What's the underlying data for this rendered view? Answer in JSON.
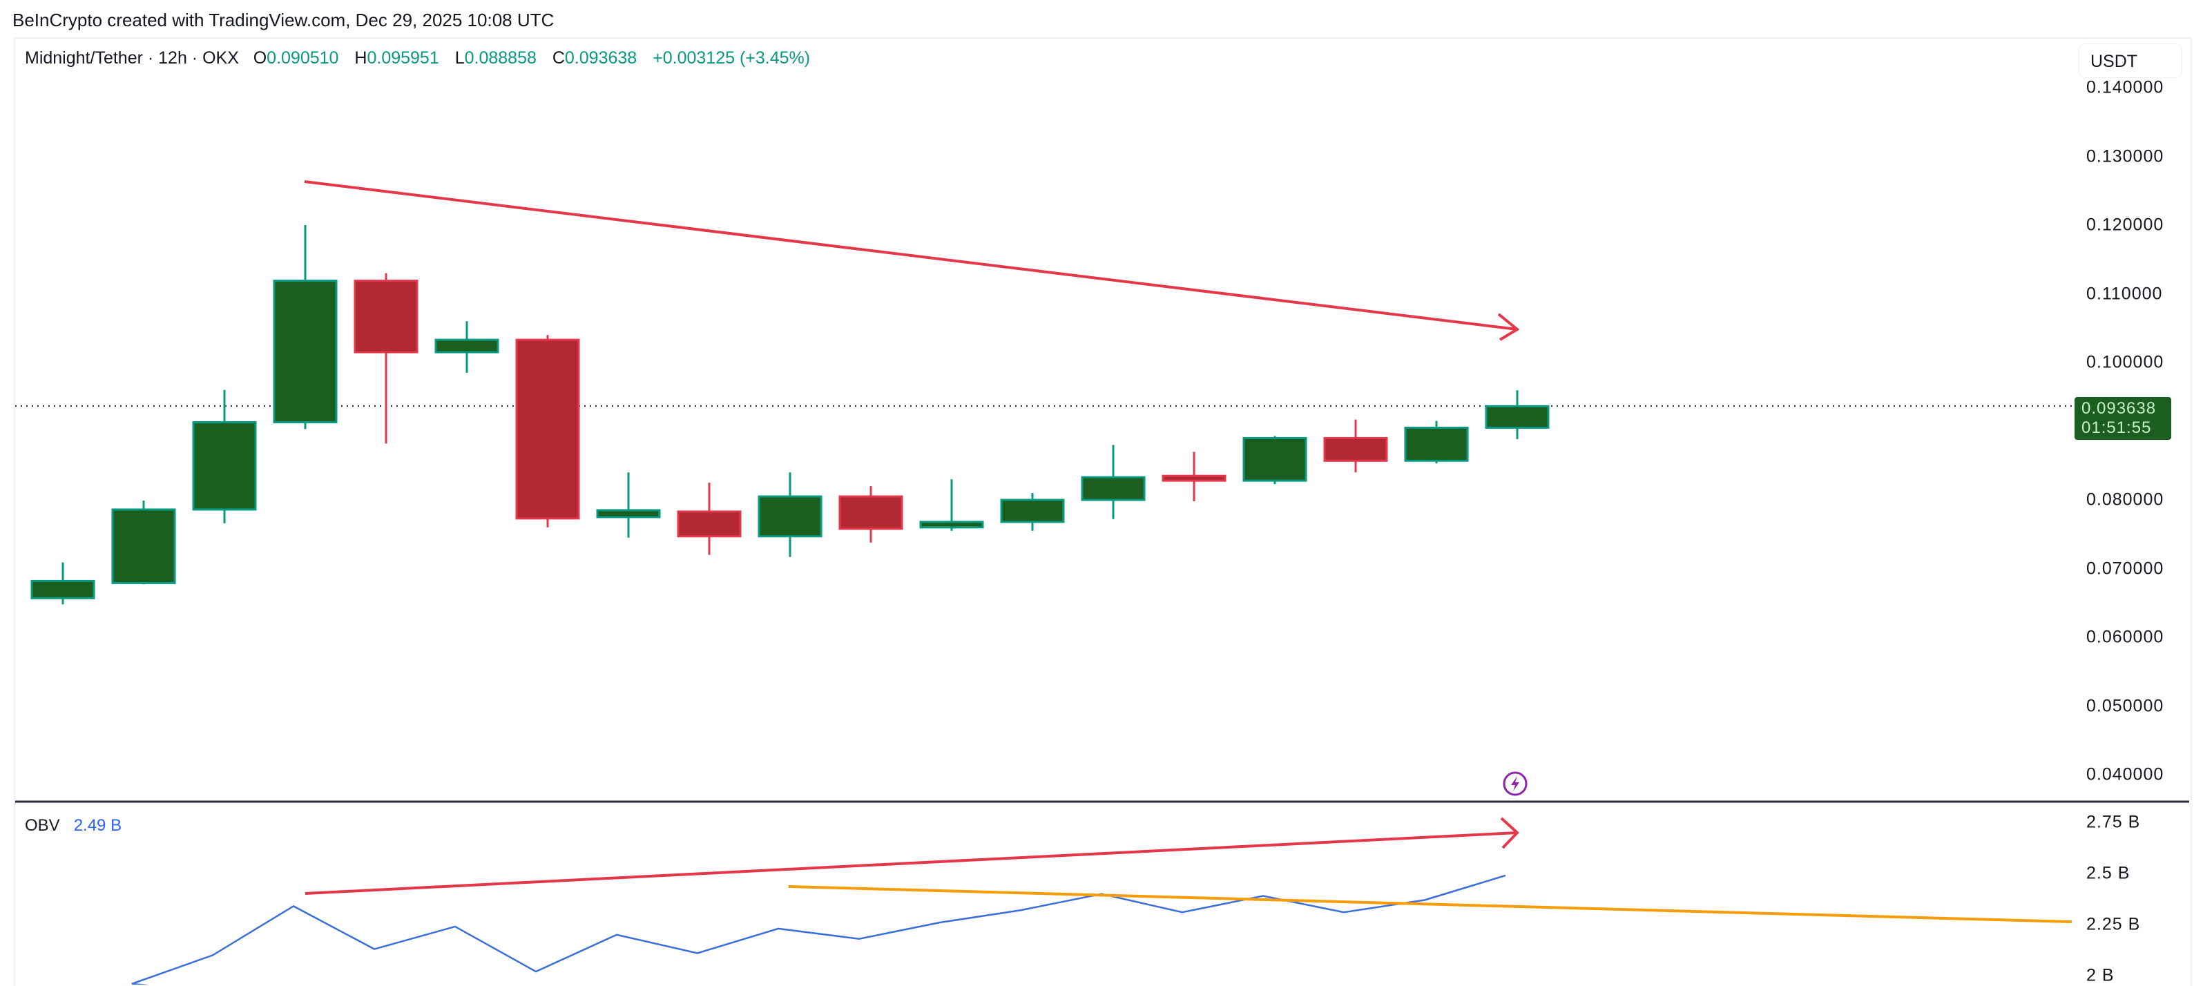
{
  "attribution": "BeInCrypto created with TradingView.com, Dec 29, 2025 10:08 UTC",
  "legend": {
    "symbol": "Midnight/Tether · 12h · OKX",
    "o_label": "O",
    "o": "0.090510",
    "h_label": "H",
    "h": "0.095951",
    "l_label": "L",
    "l": "0.088858",
    "c_label": "C",
    "c": "0.093638",
    "change": "+0.003125 (+3.45%)"
  },
  "currency_button": "USDT",
  "price_badge": {
    "price": "0.093638",
    "countdown": "01:51:55"
  },
  "price_axis": [
    "0.140000",
    "0.130000",
    "0.120000",
    "0.110000",
    "0.100000",
    "0.080000",
    "0.070000",
    "0.060000",
    "0.050000",
    "0.040000"
  ],
  "obv_axis": [
    "2.75 B",
    "2.5 B",
    "2.25 B",
    "2 B"
  ],
  "obv_legend": {
    "name": "OBV",
    "value": "2.49 B"
  },
  "icons": {
    "alert": "lightning-bolt-icon"
  },
  "colors": {
    "up_fill": "#1b5e20",
    "up_border": "#089981",
    "down_fill": "#b22833",
    "down_border": "#e5374a",
    "trend_red": "#e5374a",
    "trend_orange": "#f59c0b",
    "obv_line": "#3a6fd8",
    "bolt": "#8e24aa"
  },
  "chart_data": [
    {
      "type": "candlestick",
      "title": "Midnight/Tether · 12h · OKX",
      "ylabel": "USDT",
      "ylim": [
        0.04,
        0.14
      ],
      "grid": false,
      "last_price": 0.093638,
      "candles": [
        {
          "o": 0.0657,
          "h": 0.0709,
          "l": 0.0648,
          "c": 0.0682
        },
        {
          "o": 0.0679,
          "h": 0.0799,
          "l": 0.0677,
          "c": 0.0786
        },
        {
          "o": 0.0786,
          "h": 0.096,
          "l": 0.0766,
          "c": 0.0913
        },
        {
          "o": 0.0913,
          "h": 0.12,
          "l": 0.0903,
          "c": 0.1119
        },
        {
          "o": 0.1119,
          "h": 0.113,
          "l": 0.0882,
          "c": 0.1015
        },
        {
          "o": 0.1015,
          "h": 0.106,
          "l": 0.0985,
          "c": 0.1033
        },
        {
          "o": 0.1033,
          "h": 0.104,
          "l": 0.076,
          "c": 0.0773
        },
        {
          "o": 0.0775,
          "h": 0.084,
          "l": 0.0745,
          "c": 0.0785
        },
        {
          "o": 0.0783,
          "h": 0.0825,
          "l": 0.072,
          "c": 0.0747
        },
        {
          "o": 0.0747,
          "h": 0.084,
          "l": 0.0717,
          "c": 0.0805
        },
        {
          "o": 0.0805,
          "h": 0.082,
          "l": 0.0738,
          "c": 0.0758
        },
        {
          "o": 0.076,
          "h": 0.083,
          "l": 0.0755,
          "c": 0.0768
        },
        {
          "o": 0.0768,
          "h": 0.081,
          "l": 0.0755,
          "c": 0.08
        },
        {
          "o": 0.08,
          "h": 0.088,
          "l": 0.0772,
          "c": 0.0833
        },
        {
          "o": 0.0835,
          "h": 0.087,
          "l": 0.0798,
          "c": 0.0828
        },
        {
          "o": 0.0828,
          "h": 0.0893,
          "l": 0.0823,
          "c": 0.089
        },
        {
          "o": 0.089,
          "h": 0.0917,
          "l": 0.084,
          "c": 0.0857
        },
        {
          "o": 0.0857,
          "h": 0.0915,
          "l": 0.0853,
          "c": 0.0905
        },
        {
          "o": 0.09051,
          "h": 0.095951,
          "l": 0.088858,
          "c": 0.093638
        }
      ],
      "annotations": [
        {
          "type": "arrow",
          "color": "red",
          "from": [
            4,
            0.1262
          ],
          "to": [
            19,
            0.1048
          ],
          "label": "descending price highs"
        }
      ]
    },
    {
      "type": "line",
      "title": "OBV",
      "ylabel": "",
      "ylim": [
        2.0,
        2.75
      ],
      "unit": "B",
      "series": [
        {
          "name": "OBV",
          "values": [
            1.96,
            2.1,
            2.34,
            2.13,
            2.24,
            2.02,
            2.2,
            2.11,
            2.23,
            2.18,
            2.26,
            2.32,
            2.4,
            2.31,
            2.39,
            2.31,
            2.37,
            2.49
          ]
        }
      ],
      "x_start_index": 1,
      "annotations": [
        {
          "type": "arrow",
          "color": "red",
          "from": [
            4,
            2.42
          ],
          "to": [
            19,
            2.69
          ],
          "label": "rising OBV highs"
        },
        {
          "type": "line",
          "color": "orange",
          "from": [
            10,
            2.45
          ],
          "to": "right-edge",
          "end_value": 2.28,
          "label": "OBV trendline"
        }
      ]
    }
  ]
}
